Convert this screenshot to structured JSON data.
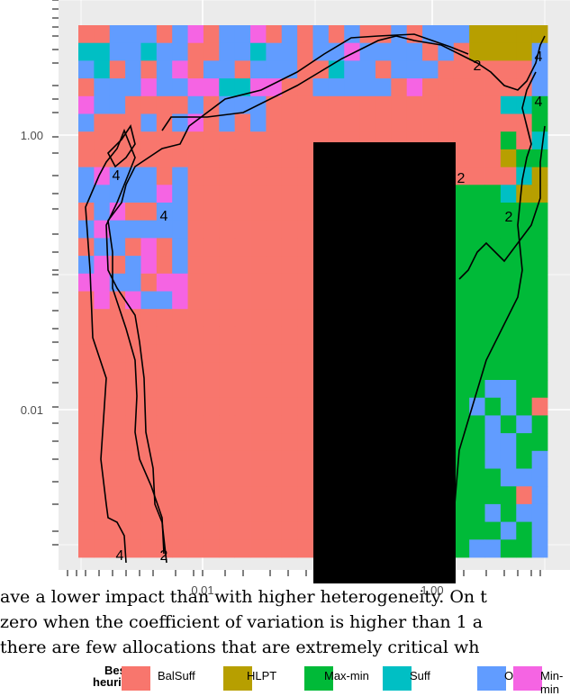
{
  "chart_data": {
    "type": "heatmap",
    "title": "",
    "xlabel": "",
    "ylabel": "",
    "x_scale": "log",
    "y_scale": "log",
    "xlim": [
      0.001,
      3
    ],
    "ylim": [
      0.0003,
      10
    ],
    "x_ticks": [
      {
        "value": 0.01,
        "label": "0.01"
      },
      {
        "value": 1,
        "label": "1.00"
      }
    ],
    "y_ticks": [
      {
        "value": 0.01,
        "label": "0.01"
      },
      {
        "value": 1,
        "label": "1.00"
      }
    ],
    "fill_legend_title": "Best heuristic",
    "categories": [
      {
        "name": "BalSuff",
        "color": "#F8766D"
      },
      {
        "name": "HLPT",
        "color": "#B79F00"
      },
      {
        "name": "Max-min",
        "color": "#00BA38"
      },
      {
        "name": "Suff",
        "color": "#00BFC4"
      },
      {
        "name": "OLB",
        "color": "#619CFF"
      },
      {
        "name": "Min-min",
        "color": "#F564E3"
      }
    ],
    "contour_levels": [
      {
        "level": 2,
        "label": "2"
      },
      {
        "level": 4,
        "label": "4"
      }
    ],
    "grid": true,
    "legend_position": "bottom",
    "heatmap_grid": {
      "cols": 30,
      "rows": 30,
      "base_category": "BalSuff"
    }
  },
  "body_text": {
    "line1": "ave a lower impact than with higher heterogeneity. On t",
    "line2": "zero when the coefficient of variation is higher than 1 a",
    "line3": "there are few allocations that are extremely critical wh"
  },
  "legend": {
    "title_line1": "Best",
    "title_line2": "heuristic",
    "items": [
      {
        "label": "BalSuff",
        "color": "#F8766D"
      },
      {
        "label": "HLPT",
        "color": "#B79F00"
      },
      {
        "label": "Max-min",
        "color": "#00BA38"
      },
      {
        "label": "Suff",
        "color": "#00BFC4"
      },
      {
        "label": "OLB",
        "color": "#619CFF"
      },
      {
        "label": "Min-min",
        "color": "#F564E3"
      }
    ]
  }
}
